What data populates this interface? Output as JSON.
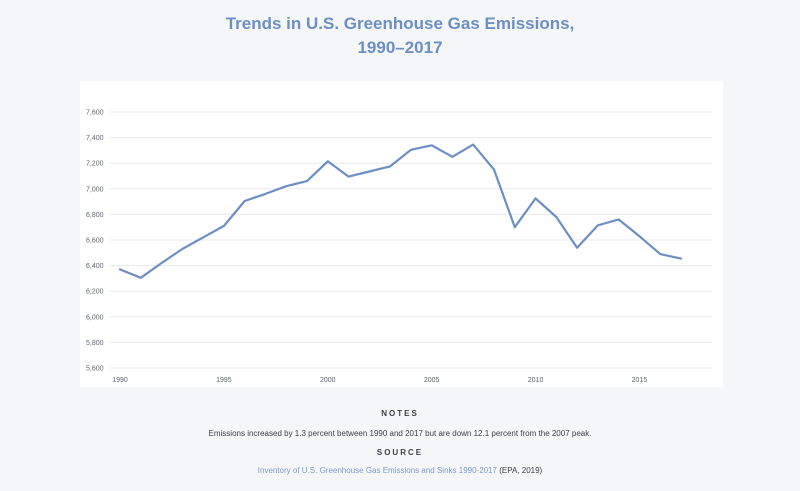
{
  "page": {
    "title_line1": "Trends in U.S. Greenhouse Gas Emissions,",
    "title_line2": "1990–2017"
  },
  "notes": {
    "heading": "NOTES",
    "text": "Emissions increased by 1.3 percent between 1990 and 2017 but are down 12.1 percent from the 2007 peak."
  },
  "source": {
    "heading": "SOURCE",
    "link_text": "Inventory of U.S. Greenhouse Gas Emissions and Sinks 1990-2017",
    "suffix": " (EPA, 2019)"
  },
  "colors": {
    "line": "#6b8fc3",
    "title": "#6b8fc3",
    "grid": "#e6e8ec",
    "background": "#f5f6f8"
  },
  "chart_data": {
    "type": "line",
    "title": "Trends in U.S. Greenhouse Gas Emissions, 1990–2017",
    "xlabel": "",
    "ylabel": "",
    "grid": true,
    "xlim": [
      1990,
      2017
    ],
    "ylim": [
      5600,
      7600
    ],
    "yticks": [
      5600,
      5800,
      6000,
      6200,
      6400,
      6600,
      6800,
      7000,
      7200,
      7400,
      7600
    ],
    "ytick_labels": [
      "5,600",
      "5,800",
      "6,000",
      "6,200",
      "6,400",
      "6,600",
      "6,800",
      "7,000",
      "7,200",
      "7,400",
      "7,600"
    ],
    "xticks": [
      1990,
      1995,
      2000,
      2005,
      2010,
      2015
    ],
    "xtick_labels": [
      "1990",
      "1995",
      "2000",
      "2005",
      "2010",
      "2015"
    ],
    "series": [
      {
        "name": "U.S. Greenhouse Gas Emissions",
        "x": [
          1990,
          1991,
          1992,
          1993,
          1994,
          1995,
          1996,
          1997,
          1998,
          1999,
          2000,
          2001,
          2002,
          2003,
          2004,
          2005,
          2006,
          2007,
          2008,
          2009,
          2010,
          2011,
          2012,
          2013,
          2014,
          2015,
          2016,
          2017
        ],
        "values": [
          6370,
          6305,
          6420,
          6530,
          6620,
          6710,
          6905,
          6960,
          7020,
          7060,
          7215,
          7095,
          7135,
          7175,
          7305,
          7340,
          7250,
          7345,
          7150,
          6700,
          6925,
          6780,
          6540,
          6715,
          6760,
          6630,
          6490,
          6455
        ]
      }
    ]
  }
}
